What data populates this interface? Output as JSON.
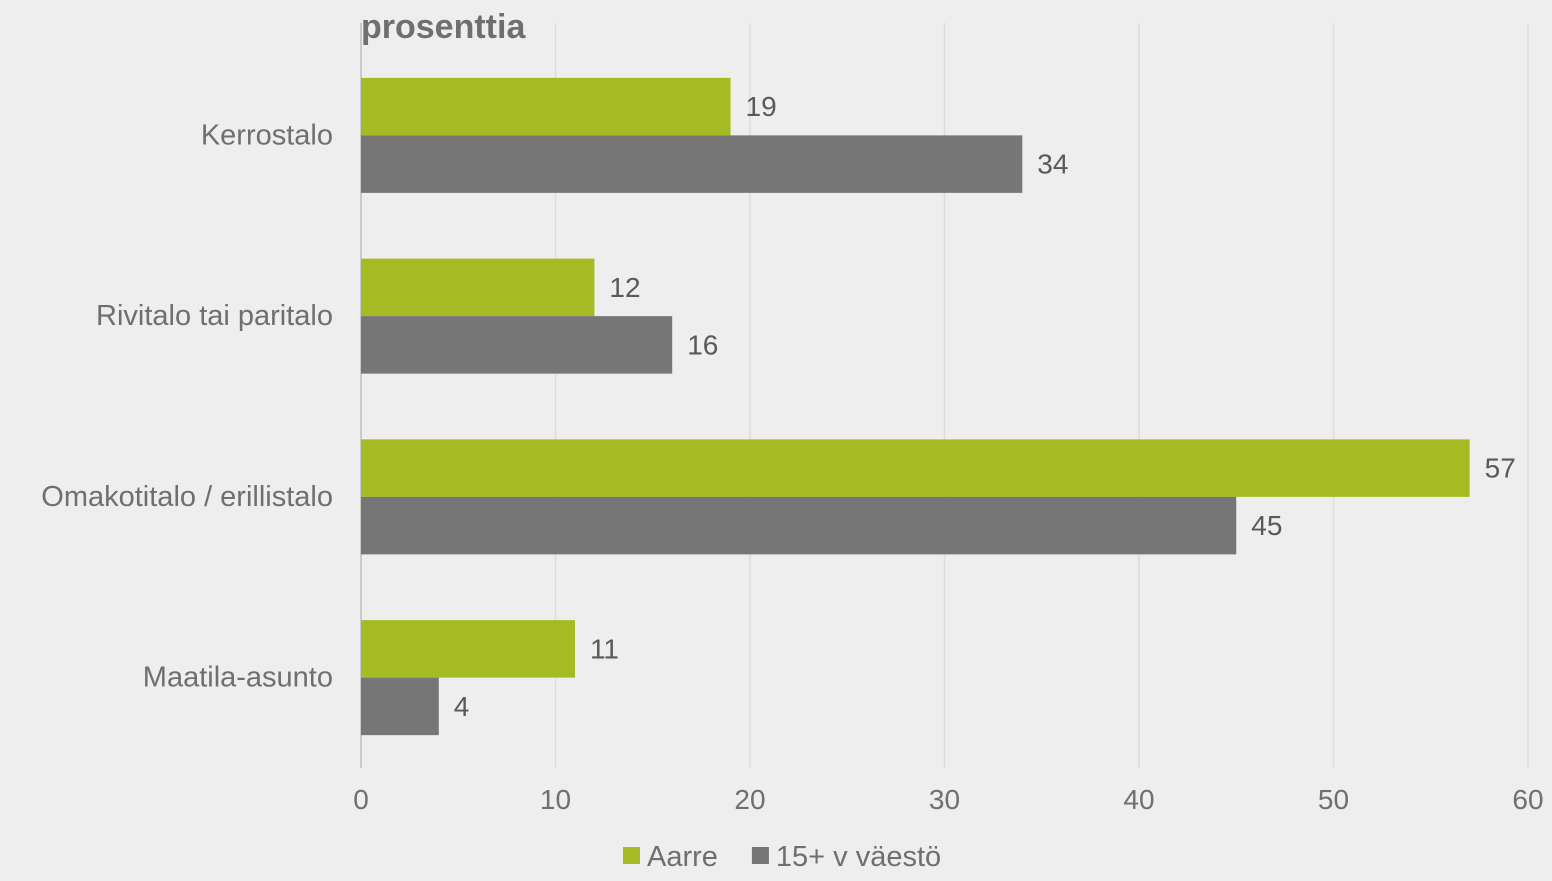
{
  "chart_data": {
    "type": "bar",
    "orientation": "horizontal",
    "unit_label": "prosenttia",
    "categories": [
      "Kerrostalo",
      "Rivitalo tai paritalo",
      "Omakotitalo / erillistalo",
      "Maatila-asunto"
    ],
    "series": [
      {
        "name": "Aarre",
        "color": "#a5ba23",
        "values": [
          19,
          12,
          57,
          11
        ]
      },
      {
        "name": "15+ v väestö",
        "color": "#767676",
        "values": [
          34,
          16,
          45,
          4
        ]
      }
    ],
    "xlim": [
      0,
      60
    ],
    "xticks": [
      0,
      10,
      20,
      30,
      40,
      50,
      60
    ],
    "grid": true,
    "legend_position": "bottom"
  }
}
